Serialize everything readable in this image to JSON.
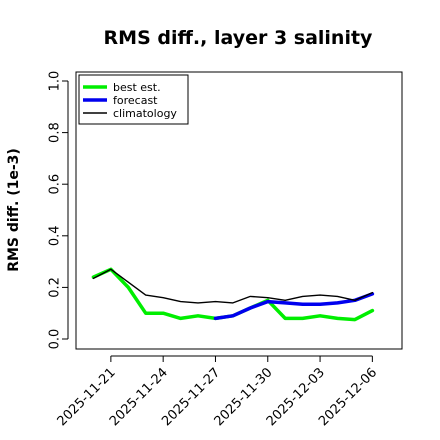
{
  "chart_data": {
    "type": "line",
    "title": "RMS diff., layer 3 salinity",
    "xlabel": "",
    "ylabel": "RMS diff. (1e-3)",
    "ylim": [
      0.0,
      1.0
    ],
    "yticks": [
      "0.0",
      "0.2",
      "0.4",
      "0.6",
      "0.8",
      "1.0"
    ],
    "ytick_values": [
      0.0,
      0.2,
      0.4,
      0.6,
      0.8,
      1.0
    ],
    "xticks": [
      "2025-11-21",
      "2025-11-24",
      "2025-11-27",
      "2025-11-30",
      "2025-12-03",
      "2025-12-06"
    ],
    "xtick_days": [
      0,
      3,
      6,
      9,
      12,
      15
    ],
    "highlighted_xtick": "2025-11-27",
    "highlight_color": "#228B22",
    "xlim_days": [
      -2.0,
      16.7
    ],
    "legend_position": "top-left",
    "grid": false,
    "series": [
      {
        "name": "best est.",
        "color": "#00ee00",
        "width": 3.5,
        "x": [
          -1,
          0,
          1,
          2,
          3,
          4,
          5,
          6,
          7,
          8,
          9,
          10,
          11,
          12,
          13,
          14,
          15
        ],
        "y": [
          0.24,
          0.27,
          0.2,
          0.1,
          0.1,
          0.08,
          0.09,
          0.08,
          0.09,
          0.12,
          0.15,
          0.08,
          0.08,
          0.09,
          0.08,
          0.075,
          0.11
        ]
      },
      {
        "name": "forecast",
        "color": "#0000ee",
        "width": 3.5,
        "x": [
          6,
          7,
          8,
          9,
          10,
          11,
          12,
          13,
          14,
          15
        ],
        "y": [
          0.08,
          0.09,
          0.12,
          0.145,
          0.14,
          0.135,
          0.135,
          0.14,
          0.15,
          0.175
        ]
      },
      {
        "name": "climatology",
        "color": "#000000",
        "width": 1.4,
        "x": [
          -1,
          0,
          1,
          2,
          3,
          4,
          5,
          6,
          7,
          8,
          9,
          10,
          11,
          12,
          13,
          14,
          15
        ],
        "y": [
          0.235,
          0.27,
          0.22,
          0.17,
          0.16,
          0.145,
          0.14,
          0.145,
          0.14,
          0.165,
          0.16,
          0.15,
          0.165,
          0.17,
          0.165,
          0.15,
          0.18
        ]
      }
    ]
  }
}
